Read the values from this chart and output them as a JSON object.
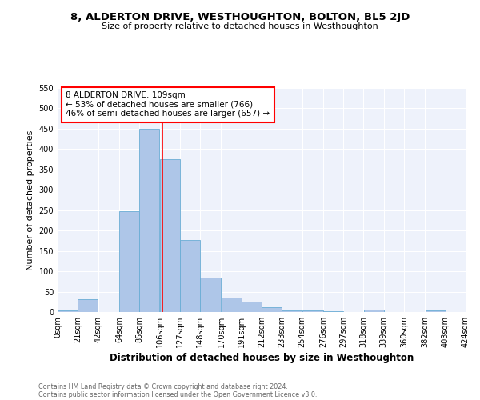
{
  "title": "8, ALDERTON DRIVE, WESTHOUGHTON, BOLTON, BL5 2JD",
  "subtitle": "Size of property relative to detached houses in Westhoughton",
  "xlabel": "Distribution of detached houses by size in Westhoughton",
  "ylabel": "Number of detached properties",
  "footnote1": "Contains HM Land Registry data © Crown copyright and database right 2024.",
  "footnote2": "Contains public sector information licensed under the Open Government Licence v3.0.",
  "annotation_line1": "8 ALDERTON DRIVE: 109sqm",
  "annotation_line2": "← 53% of detached houses are smaller (766)",
  "annotation_line3": "46% of semi-detached houses are larger (657) →",
  "property_size": 109,
  "bar_color": "#aec6e8",
  "bar_edge_color": "#6aadd5",
  "vline_color": "red",
  "background_color": "#eef2fb",
  "bin_edges": [
    0,
    21,
    42,
    64,
    85,
    106,
    127,
    148,
    170,
    191,
    212,
    233,
    254,
    276,
    297,
    318,
    339,
    360,
    382,
    403,
    424
  ],
  "bar_heights": [
    3,
    32,
    0,
    248,
    449,
    375,
    176,
    84,
    35,
    25,
    12,
    3,
    4,
    1,
    0,
    5,
    0,
    0,
    3,
    0
  ],
  "ylim": [
    0,
    550
  ],
  "yticks": [
    0,
    50,
    100,
    150,
    200,
    250,
    300,
    350,
    400,
    450,
    500,
    550
  ],
  "xtick_labels": [
    "0sqm",
    "21sqm",
    "42sqm",
    "64sqm",
    "85sqm",
    "106sqm",
    "127sqm",
    "148sqm",
    "170sqm",
    "191sqm",
    "212sqm",
    "233sqm",
    "254sqm",
    "276sqm",
    "297sqm",
    "318sqm",
    "339sqm",
    "360sqm",
    "382sqm",
    "403sqm",
    "424sqm"
  ],
  "title_fontsize": 9.5,
  "subtitle_fontsize": 8,
  "ylabel_fontsize": 8,
  "xlabel_fontsize": 8.5,
  "tick_fontsize": 7,
  "footnote_fontsize": 5.8,
  "annot_fontsize": 7.5
}
